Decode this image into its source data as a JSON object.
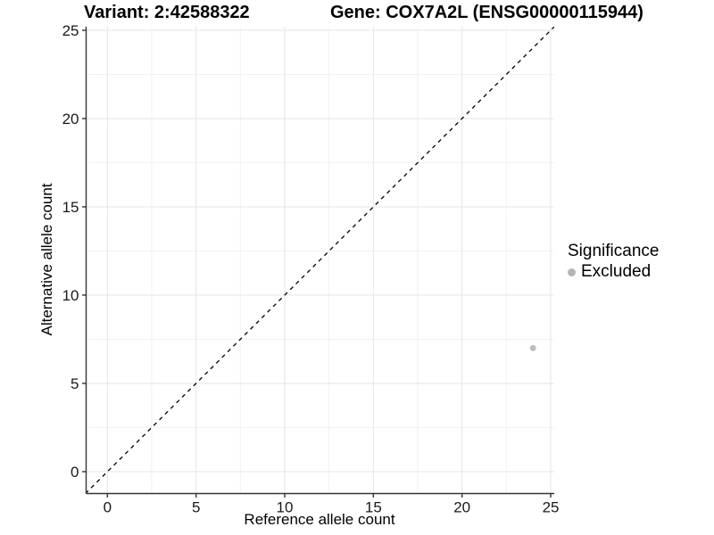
{
  "chart_data": {
    "type": "scatter",
    "title_left": "Variant: 2:42588322",
    "title_right": "Gene: COX7A2L (ENSG00000115944)",
    "xlabel": "Reference allele count",
    "ylabel": "Alternative allele count",
    "xlim": [
      -1.2,
      25.2
    ],
    "ylim": [
      -1.24,
      25.2
    ],
    "x_ticks": [
      0,
      5,
      10,
      15,
      20,
      25
    ],
    "y_ticks": [
      0,
      5,
      10,
      15,
      20,
      25
    ],
    "x_minor_ticks": [
      2.5,
      7.5,
      12.5,
      17.5,
      22.5
    ],
    "y_minor_ticks": [
      2.5,
      7.5,
      12.5,
      17.5,
      22.5
    ],
    "grid": true,
    "reference_line": {
      "type": "abline",
      "slope": 1,
      "intercept": 0,
      "style": "dashed",
      "color": "#000000"
    },
    "series": [
      {
        "name": "Excluded",
        "color": "#bcbcbc",
        "points": [
          {
            "x": 24,
            "y": 7
          }
        ]
      }
    ],
    "legend": {
      "title": "Significance",
      "position": "right",
      "entries": [
        {
          "label": "Excluded",
          "color": "#b5b5b5"
        }
      ]
    },
    "colors": {
      "background": "#ffffff",
      "grid_major": "#e6e6e6",
      "grid_minor": "#f2f2f2",
      "axis_line": "#333333",
      "tick_mark": "#333333",
      "tick_label": "#1a1a1a"
    }
  }
}
